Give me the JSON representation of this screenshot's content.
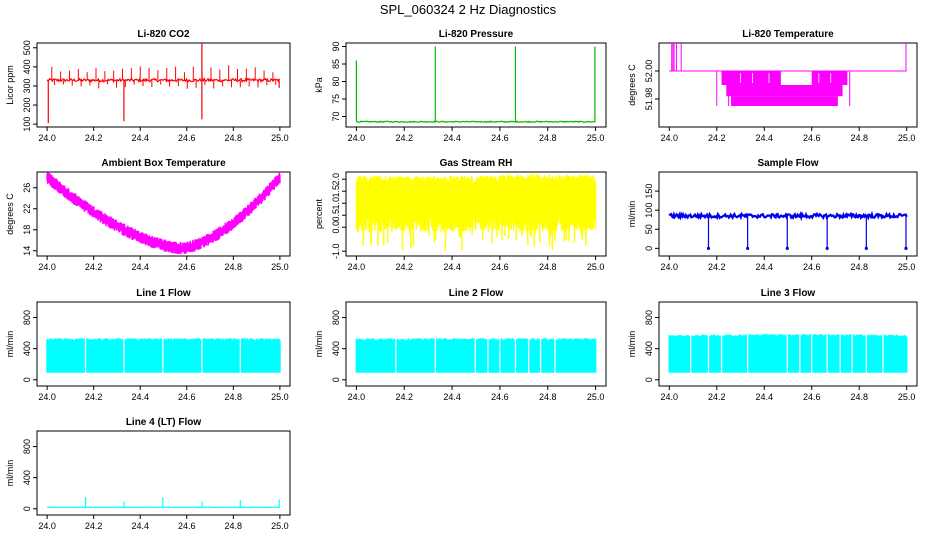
{
  "title": "SPL_060324  2 Hz Diagnostics",
  "colors": {
    "red": "#ff0000",
    "green": "#00bb00",
    "magenta": "#ff00ff",
    "yellow": "#ffff00",
    "blue": "#0000ee",
    "cyan": "#00ffff"
  },
  "chart_data": [
    {
      "id": "co2",
      "type": "line",
      "title": "Li-820 CO2",
      "ylabel": "Licor ppm",
      "color": "#ff0000",
      "xlim": [
        24.0,
        25.0
      ],
      "ylim": [
        85,
        525
      ],
      "xticks": [
        "24.0",
        "24.2",
        "24.4",
        "24.6",
        "24.8",
        "25.0"
      ],
      "yticks": [
        100,
        200,
        300,
        400,
        500
      ],
      "baseline": 330,
      "noise": 8,
      "spikes": [
        [
          24.005,
          105
        ],
        [
          24.33,
          115
        ],
        [
          24.665,
          525
        ],
        [
          24.665,
          125
        ],
        [
          24.997,
          290
        ]
      ]
    },
    {
      "id": "pressure",
      "type": "line",
      "title": "Li-820 Pressure",
      "ylabel": "kPa",
      "color": "#00bb00",
      "xlim": [
        24.0,
        25.0
      ],
      "ylim": [
        67,
        91
      ],
      "xticks": [
        "24.0",
        "24.2",
        "24.4",
        "24.6",
        "24.8",
        "25.0"
      ],
      "yticks": [
        70,
        75,
        80,
        85,
        90
      ],
      "baseline": 68.5,
      "noise": 0.15,
      "spikes": [
        [
          24.0,
          86
        ],
        [
          24.33,
          90
        ],
        [
          24.665,
          90
        ],
        [
          24.997,
          90
        ]
      ]
    },
    {
      "id": "temperature",
      "type": "line",
      "title": "Li-820 Temperature",
      "ylabel": "degrees C",
      "color": "#ff00ff",
      "xlim": [
        24.0,
        25.0
      ],
      "ylim": [
        51.96,
        52.02
      ],
      "xticks": [
        "24.0",
        "24.2",
        "24.4",
        "24.6",
        "24.8",
        "25.0"
      ],
      "yticks": [
        51.98,
        52.0
      ],
      "yticklabels": [
        "51.98",
        "52.00"
      ]
    },
    {
      "id": "ambient",
      "type": "line",
      "title": "Ambient Box Temperature",
      "ylabel": "degrees C",
      "color": "#ff00ff",
      "xlim": [
        24.0,
        25.0
      ],
      "ylim": [
        13,
        29
      ],
      "xticks": [
        "24.0",
        "24.2",
        "24.4",
        "24.6",
        "24.8",
        "25.0"
      ],
      "yticks": [
        14,
        18,
        22,
        26
      ],
      "min_x": 24.58,
      "min_y": 14.5,
      "max_y": 28.0,
      "noise": 0.8
    },
    {
      "id": "rh",
      "type": "line",
      "title": "Gas Stream RH",
      "ylabel": "percent",
      "color": "#ffff00",
      "xlim": [
        24.0,
        25.0
      ],
      "ylim": [
        -1.2,
        2.3
      ],
      "xticks": [
        "24.0",
        "24.2",
        "24.4",
        "24.6",
        "24.8",
        "25.0"
      ],
      "yticks": [
        -1.0,
        0.0,
        0.5,
        1.0,
        1.5,
        2.0
      ],
      "yticklabels": [
        "-1.0",
        "0.0",
        "0.5",
        "1.0",
        "1.5",
        "2.0"
      ]
    },
    {
      "id": "sample",
      "type": "line",
      "title": "Sample Flow",
      "ylabel": "ml/min",
      "color": "#0000ee",
      "xlim": [
        24.0,
        25.0
      ],
      "ylim": [
        -20,
        200
      ],
      "xticks": [
        "24.0",
        "24.2",
        "24.4",
        "24.6",
        "24.8",
        "25.0"
      ],
      "yticks": [
        0,
        50,
        100,
        150
      ],
      "baseline": 85,
      "noise": 5,
      "dips": [
        24.165,
        24.33,
        24.497,
        24.665,
        24.83,
        24.997
      ]
    },
    {
      "id": "line1",
      "type": "area",
      "title": "Line 1 Flow",
      "ylabel": "ml/min",
      "color": "#00ffff",
      "xlim": [
        24.0,
        25.0
      ],
      "ylim": [
        -80,
        1000
      ],
      "xticks": [
        "24.0",
        "24.2",
        "24.4",
        "24.6",
        "24.8",
        "25.0"
      ],
      "yticks": [
        0,
        400,
        800
      ],
      "band": [
        90,
        520
      ],
      "gaps": [
        24.165,
        24.33,
        24.497,
        24.665,
        24.83
      ]
    },
    {
      "id": "line2",
      "type": "area",
      "title": "Line 2 Flow",
      "ylabel": "ml/min",
      "color": "#00ffff",
      "xlim": [
        24.0,
        25.0
      ],
      "ylim": [
        -80,
        1000
      ],
      "xticks": [
        "24.0",
        "24.2",
        "24.4",
        "24.6",
        "24.8",
        "25.0"
      ],
      "yticks": [
        0,
        400,
        800
      ],
      "band": [
        90,
        520
      ],
      "gaps": [
        24.165,
        24.33,
        24.497,
        24.55,
        24.6,
        24.665,
        24.72,
        24.77,
        24.83
      ]
    },
    {
      "id": "line3",
      "type": "area",
      "title": "Line 3 Flow",
      "ylabel": "ml/min",
      "color": "#00ffff",
      "xlim": [
        24.0,
        25.0
      ],
      "ylim": [
        -80,
        1000
      ],
      "xticks": [
        "24.0",
        "24.2",
        "24.4",
        "24.6",
        "24.8",
        "25.0"
      ],
      "yticks": [
        0,
        400,
        800
      ],
      "band": [
        90,
        560
      ],
      "gaps": [
        24.09,
        24.165,
        24.22,
        24.33,
        24.497,
        24.55,
        24.6,
        24.665,
        24.72,
        24.77,
        24.83,
        24.9
      ]
    },
    {
      "id": "line4",
      "type": "line",
      "title": "Line 4 (LT) Flow",
      "ylabel": "ml/min",
      "color": "#00ffff",
      "xlim": [
        24.0,
        25.0
      ],
      "ylim": [
        -80,
        1000
      ],
      "xticks": [
        "24.0",
        "24.2",
        "24.4",
        "24.6",
        "24.8",
        "25.0"
      ],
      "yticks": [
        0,
        400,
        800
      ],
      "baseline": 20,
      "noise": 3,
      "spikes": [
        [
          24.165,
          150
        ],
        [
          24.33,
          90
        ],
        [
          24.497,
          150
        ],
        [
          24.665,
          90
        ],
        [
          24.83,
          110
        ],
        [
          24.997,
          120
        ]
      ]
    }
  ]
}
